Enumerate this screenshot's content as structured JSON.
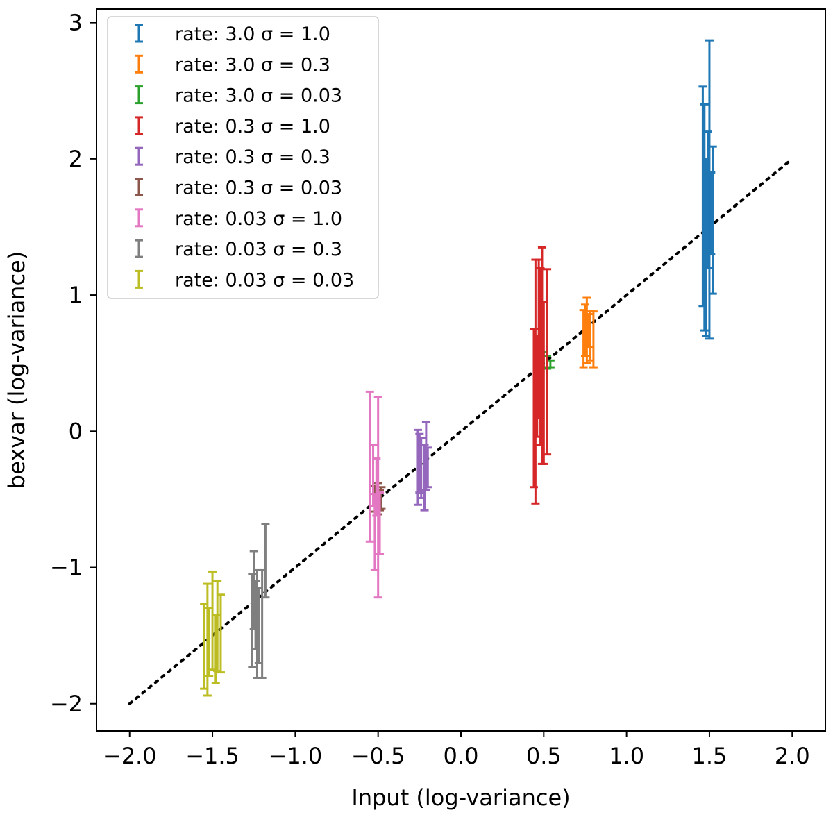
{
  "chart_data": {
    "type": "errorbar",
    "xlabel": "Input (log-variance)",
    "ylabel": "bexvar (log-variance)",
    "xlim": [
      -2.2,
      2.2
    ],
    "ylim": [
      -2.2,
      3.1
    ],
    "xticks": [
      -2.0,
      -1.5,
      -1.0,
      -0.5,
      0.0,
      0.5,
      1.0,
      1.5,
      2.0
    ],
    "xtick_labels": [
      "−2.0",
      "−1.5",
      "−1.0",
      "−0.5",
      "0.0",
      "0.5",
      "1.0",
      "1.5",
      "2.0"
    ],
    "yticks": [
      -2,
      -1,
      0,
      1,
      2,
      3
    ],
    "ytick_labels": [
      "−2",
      "−1",
      "0",
      "1",
      "2",
      "3"
    ],
    "reference_line": {
      "x": [
        -2.0,
        2.0
      ],
      "y": [
        -2.0,
        2.0
      ],
      "style": "dotted",
      "color": "#000000"
    },
    "legend_position": "upper-left",
    "series": [
      {
        "name": "rate: 3.0 σ = 1.0",
        "color": "#1f77b4",
        "points": [
          {
            "x": 1.46,
            "lo": 0.92,
            "hi": 2.53
          },
          {
            "x": 1.47,
            "lo": 0.74,
            "hi": 2.4
          },
          {
            "x": 1.48,
            "lo": 0.7,
            "hi": 2.0
          },
          {
            "x": 1.49,
            "lo": 1.2,
            "hi": 2.2
          },
          {
            "x": 1.5,
            "lo": 0.68,
            "hi": 2.87
          },
          {
            "x": 1.51,
            "lo": 1.3,
            "hi": 1.9
          },
          {
            "x": 1.52,
            "lo": 1.01,
            "hi": 2.09
          }
        ]
      },
      {
        "name": "rate: 3.0 σ = 0.3",
        "color": "#ff7f0e",
        "points": [
          {
            "x": 0.74,
            "lo": 0.47,
            "hi": 0.89
          },
          {
            "x": 0.75,
            "lo": 0.55,
            "hi": 0.93
          },
          {
            "x": 0.76,
            "lo": 0.5,
            "hi": 0.98
          },
          {
            "x": 0.77,
            "lo": 0.62,
            "hi": 0.86
          },
          {
            "x": 0.78,
            "lo": 0.52,
            "hi": 0.88
          },
          {
            "x": 0.8,
            "lo": 0.47,
            "hi": 0.88
          }
        ]
      },
      {
        "name": "rate: 3.0 σ = 0.03",
        "color": "#2ca02c",
        "points": [
          {
            "x": 0.48,
            "lo": 0.45,
            "hi": 0.53
          },
          {
            "x": 0.5,
            "lo": 0.47,
            "hi": 0.58
          },
          {
            "x": 0.52,
            "lo": 0.46,
            "hi": 0.55
          },
          {
            "x": 0.54,
            "lo": 0.47,
            "hi": 0.52
          }
        ]
      },
      {
        "name": "rate: 0.3 σ = 1.0",
        "color": "#d62728",
        "points": [
          {
            "x": 0.44,
            "lo": -0.41,
            "hi": 0.75
          },
          {
            "x": 0.45,
            "lo": -0.53,
            "hi": 1.26
          },
          {
            "x": 0.46,
            "lo": -0.04,
            "hi": 0.7
          },
          {
            "x": 0.47,
            "lo": 0.1,
            "hi": 1.26
          },
          {
            "x": 0.48,
            "lo": -0.1,
            "hi": 1.2
          },
          {
            "x": 0.49,
            "lo": -0.24,
            "hi": 1.35
          },
          {
            "x": 0.5,
            "lo": -0.24,
            "hi": 0.95
          },
          {
            "x": 0.52,
            "lo": -0.17,
            "hi": 1.19
          }
        ]
      },
      {
        "name": "rate: 0.3 σ = 0.3",
        "color": "#9467bd",
        "points": [
          {
            "x": -0.26,
            "lo": -0.54,
            "hi": 0.01
          },
          {
            "x": -0.25,
            "lo": -0.45,
            "hi": -0.02
          },
          {
            "x": -0.24,
            "lo": -0.49,
            "hi": -0.05
          },
          {
            "x": -0.22,
            "lo": -0.58,
            "hi": -0.1
          },
          {
            "x": -0.21,
            "lo": -0.43,
            "hi": 0.07
          },
          {
            "x": -0.2,
            "lo": -0.41,
            "hi": -0.12
          }
        ]
      },
      {
        "name": "rate: 0.3 σ = 0.03",
        "color": "#8c564b",
        "points": [
          {
            "x": -0.52,
            "lo": -0.59,
            "hi": -0.4
          },
          {
            "x": -0.5,
            "lo": -0.61,
            "hi": -0.38
          },
          {
            "x": -0.49,
            "lo": -0.58,
            "hi": -0.43
          },
          {
            "x": -0.48,
            "lo": -0.57,
            "hi": -0.41
          }
        ]
      },
      {
        "name": "rate: 0.03 σ = 1.0",
        "color": "#e377c2",
        "points": [
          {
            "x": -0.55,
            "lo": -0.81,
            "hi": 0.29
          },
          {
            "x": -0.53,
            "lo": -0.55,
            "hi": -0.1
          },
          {
            "x": -0.52,
            "lo": -1.02,
            "hi": -0.46
          },
          {
            "x": -0.51,
            "lo": -0.62,
            "hi": -0.2
          },
          {
            "x": -0.5,
            "lo": -1.22,
            "hi": 0.25
          },
          {
            "x": -0.49,
            "lo": -0.9,
            "hi": -0.45
          }
        ]
      },
      {
        "name": "rate: 0.03 σ = 0.3",
        "color": "#7f7f7f",
        "points": [
          {
            "x": -1.26,
            "lo": -1.73,
            "hi": -1.05
          },
          {
            "x": -1.25,
            "lo": -1.45,
            "hi": -0.88
          },
          {
            "x": -1.24,
            "lo": -1.6,
            "hi": -1.1
          },
          {
            "x": -1.23,
            "lo": -1.81,
            "hi": -1.02
          },
          {
            "x": -1.22,
            "lo": -1.7,
            "hi": -1.15
          },
          {
            "x": -1.2,
            "lo": -1.81,
            "hi": -1.02
          },
          {
            "x": -1.18,
            "lo": -1.22,
            "hi": -0.68
          }
        ]
      },
      {
        "name": "rate: 0.03 σ = 0.03",
        "color": "#bcbd22",
        "points": [
          {
            "x": -1.55,
            "lo": -1.89,
            "hi": -1.27
          },
          {
            "x": -1.53,
            "lo": -1.94,
            "hi": -1.12
          },
          {
            "x": -1.52,
            "lo": -1.8,
            "hi": -1.3
          },
          {
            "x": -1.5,
            "lo": -1.75,
            "hi": -1.03
          },
          {
            "x": -1.48,
            "lo": -1.85,
            "hi": -1.35
          },
          {
            "x": -1.47,
            "lo": -1.76,
            "hi": -1.1
          },
          {
            "x": -1.45,
            "lo": -1.77,
            "hi": -1.2
          }
        ]
      }
    ]
  }
}
